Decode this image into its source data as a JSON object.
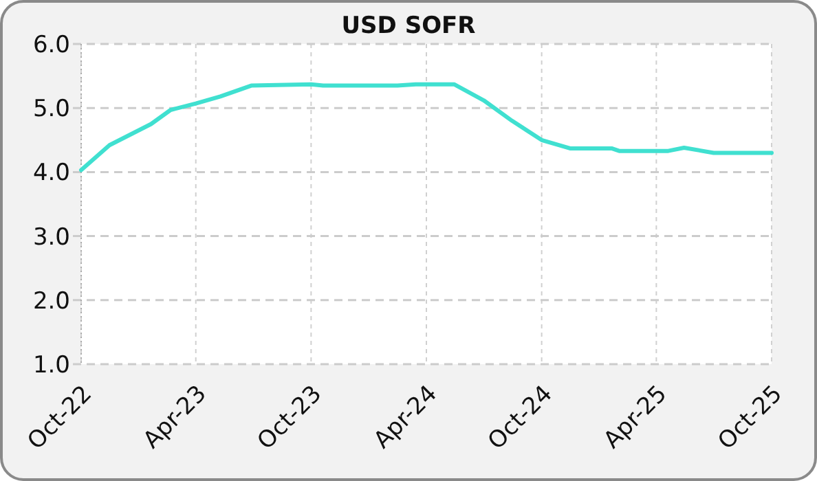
{
  "chart_data": {
    "type": "line",
    "title": "USD SOFR",
    "x": [
      "2022-10-01",
      "2022-11-15",
      "2023-01-20",
      "2023-02-20",
      "2023-04-01",
      "2023-05-10",
      "2023-06-28",
      "2023-10-01",
      "2023-10-20",
      "2024-02-15",
      "2024-03-15",
      "2024-05-15",
      "2024-07-01",
      "2024-08-15",
      "2024-10-01",
      "2024-11-15",
      "2025-01-20",
      "2025-02-01",
      "2025-04-20",
      "2025-05-15",
      "2025-07-01",
      "2025-10-01"
    ],
    "series": [
      {
        "color": "#40e0d0",
        "values": [
          4.03,
          4.42,
          4.75,
          4.97,
          5.07,
          5.18,
          5.35,
          5.37,
          5.35,
          5.35,
          5.37,
          5.37,
          5.12,
          4.8,
          4.5,
          4.37,
          4.37,
          4.33,
          4.33,
          4.38,
          4.3,
          4.3
        ]
      }
    ],
    "ylim": [
      1,
      6
    ],
    "yticks": [
      {
        "value": 1,
        "label": "1.0"
      },
      {
        "value": 2,
        "label": "2.0"
      },
      {
        "value": 3,
        "label": "3.0"
      },
      {
        "value": 4,
        "label": "4.0"
      },
      {
        "value": 5,
        "label": "5.0"
      },
      {
        "value": 6,
        "label": "6.0"
      }
    ],
    "xlim": [
      "2022-10-01",
      "2025-10-01"
    ],
    "xticks": [
      {
        "value": "2022-10-01",
        "label": "Oct-22"
      },
      {
        "value": "2023-04-01",
        "label": "Apr-23"
      },
      {
        "value": "2023-10-01",
        "label": "Oct-23"
      },
      {
        "value": "2024-04-01",
        "label": "Apr-24"
      },
      {
        "value": "2024-10-01",
        "label": "Oct-24"
      },
      {
        "value": "2025-04-01",
        "label": "Apr-25"
      },
      {
        "value": "2025-10-01",
        "label": "Oct-25"
      }
    ],
    "grid": true,
    "marker": "none",
    "line_style": "solid"
  }
}
